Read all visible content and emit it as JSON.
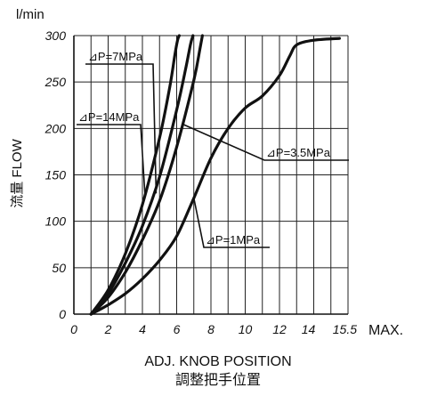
{
  "chart_data": {
    "type": "line",
    "xlabel": "ADJ. KNOB POSITION",
    "xlabel_cn": "調整把手位置",
    "ylabel": "流量 FLOW",
    "yunit": "l/min",
    "xmax_label": "MAX.",
    "xlim": [
      0,
      16
    ],
    "ylim": [
      0,
      300
    ],
    "grid": true,
    "x_ticks": [
      0,
      2,
      4,
      6,
      8,
      10,
      12,
      14,
      15.5
    ],
    "x_tick_labels": [
      "0",
      "2",
      "4",
      "6",
      "8",
      "10",
      "12",
      "14",
      "15.5"
    ],
    "y_ticks": [
      0,
      50,
      100,
      150,
      200,
      250,
      300
    ],
    "y_tick_labels": [
      "0",
      "50",
      "100",
      "150",
      "200",
      "250",
      "300"
    ],
    "series": [
      {
        "name": "⊿P=14MPa",
        "x": [
          1,
          2,
          3,
          4,
          5,
          5.6,
          5.9,
          6.05,
          6.15
        ],
        "y": [
          0,
          26,
          65,
          118,
          190,
          245,
          280,
          295,
          300
        ]
      },
      {
        "name": "⊿P=7MPa",
        "x": [
          1,
          2,
          3,
          4,
          5,
          6,
          6.5,
          6.8,
          6.95
        ],
        "y": [
          0,
          22,
          55,
          95,
          148,
          220,
          262,
          290,
          300
        ]
      },
      {
        "name": "⊿P=3.5MPa",
        "x": [
          1,
          2,
          3,
          4,
          5,
          6,
          7,
          7.35,
          7.5
        ],
        "y": [
          0,
          18,
          45,
          80,
          122,
          180,
          252,
          285,
          300
        ]
      },
      {
        "name": "⊿P=1MPa",
        "x": [
          1,
          2,
          3,
          4,
          5,
          6,
          7,
          8,
          9,
          10,
          11,
          12,
          12.6,
          13,
          14,
          15.5
        ],
        "y": [
          0,
          10,
          22,
          38,
          58,
          84,
          125,
          168,
          200,
          222,
          235,
          257,
          278,
          290,
          295,
          297
        ]
      }
    ],
    "annotations": [
      "⊿P=7MPa",
      "⊿P=14MPa",
      "⊿P=3.5MPa",
      "⊿P=1MPa"
    ]
  }
}
